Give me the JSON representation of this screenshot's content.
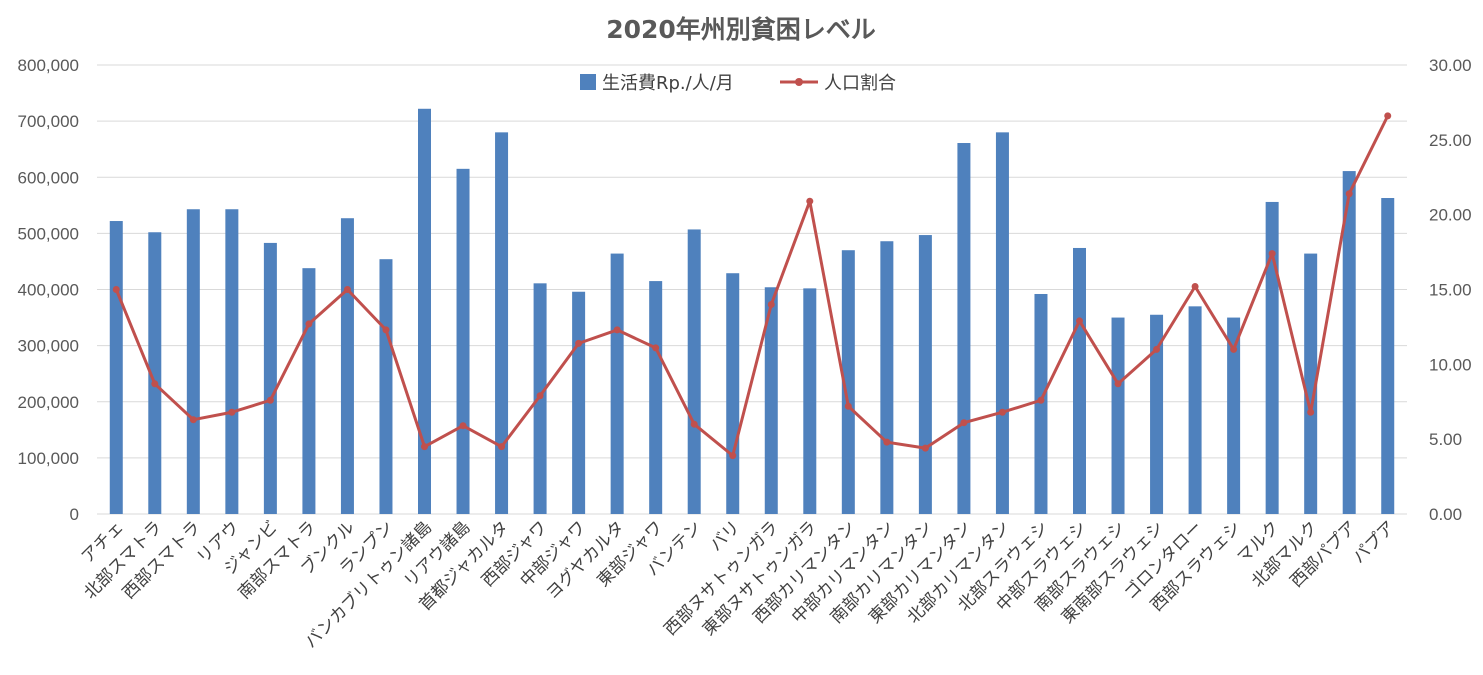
{
  "chart_data": {
    "type": "bar",
    "title": "2020年州別貧困レベル",
    "categories": [
      "アチェ",
      "北部スマトラ",
      "西部スマトラ",
      "リアウ",
      "ジャンビ",
      "南部スマトラ",
      "ブンクル",
      "ランプン",
      "バンカブリトゥン諸島",
      "リアウ諸島",
      "首都ジャカルタ",
      "西部ジャワ",
      "中部ジャワ",
      "ヨグヤカルタ",
      "東部ジャワ",
      "バンテン",
      "バリ",
      "西部ヌサトゥンガラ",
      "東部ヌサトゥンガラ",
      "西部カリマンタン",
      "中部カリマンタン",
      "南部カリマンタン",
      "東部カリマンタン",
      "北部カリマンタン",
      "北部スラウェシ",
      "中部スラウェシ",
      "南部スラウェシ",
      "東南部スラウェシ",
      "ゴロンタロー",
      "西部スラウェシ",
      "マルク",
      "北部マルク",
      "西部パプア",
      "パプア"
    ],
    "series": [
      {
        "name": "生活費Rp./人/月",
        "kind": "bar",
        "axis": "left",
        "color": "#4f81bd",
        "values": [
          522000,
          502000,
          543000,
          543000,
          483000,
          438000,
          527000,
          454000,
          722000,
          615000,
          680000,
          411000,
          396000,
          464000,
          415000,
          507000,
          429000,
          404000,
          402000,
          470000,
          486000,
          497000,
          661000,
          680000,
          392000,
          474000,
          350000,
          355000,
          370000,
          350000,
          556000,
          464000,
          611000,
          563000
        ]
      },
      {
        "name": "人口割合",
        "kind": "line",
        "axis": "right",
        "color": "#c0504d",
        "values": [
          15.0,
          8.7,
          6.3,
          6.8,
          7.6,
          12.7,
          15.0,
          12.3,
          4.5,
          5.9,
          4.5,
          7.9,
          11.4,
          12.3,
          11.1,
          6.0,
          3.9,
          14.0,
          20.9,
          7.2,
          4.8,
          4.4,
          6.1,
          6.8,
          7.6,
          12.9,
          8.7,
          11.0,
          15.2,
          11.0,
          17.4,
          6.8,
          21.4,
          26.6
        ]
      }
    ],
    "ylim_left": [
      0,
      800000
    ],
    "yticks_left": [
      "0",
      "100,000",
      "200,000",
      "300,000",
      "400,000",
      "500,000",
      "600,000",
      "700,000",
      "800,000"
    ],
    "ylim_right": [
      0,
      30
    ],
    "yticks_right": [
      "0.00",
      "5.00",
      "10.00",
      "15.00",
      "20.00",
      "25.00",
      "30.00"
    ],
    "grid": true,
    "legend_position": "top-center"
  }
}
